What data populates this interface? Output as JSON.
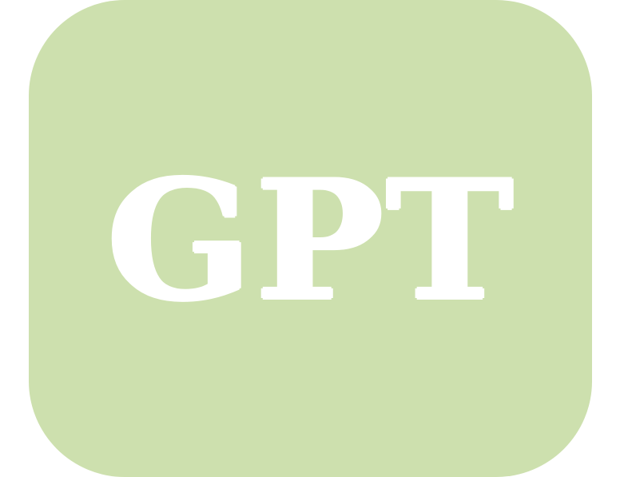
{
  "logo": {
    "text": "GPT",
    "background_color": "#cde0ae",
    "text_color": "#ffffff"
  }
}
